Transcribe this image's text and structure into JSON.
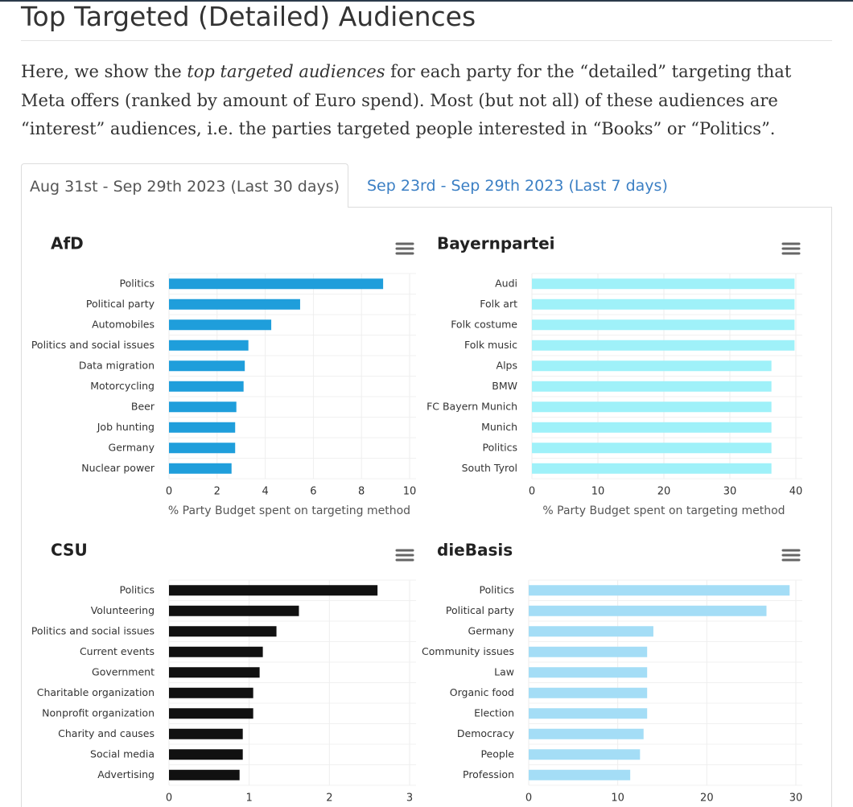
{
  "header": {
    "title": "Top Targeted (Detailed) Audiences"
  },
  "intro": [
    "Here, we show the ",
    "top targeted audiences",
    " for each party for the “detailed” targeting that Meta offers (ranked by amount of Euro spend). Most (but not all) of these audiences are “interest” audiences, i.e. the parties targeted people interested in “Books” or “Politics”."
  ],
  "tabs": [
    "Aug 31st - Sep 29th 2023 (Last 30 days)",
    "Sep 23rd - Sep 29th 2023 (Last 7 days)"
  ],
  "chart_data": [
    {
      "type": "bar",
      "title": "AfD",
      "color": "#1f9edb",
      "categories": [
        "Politics",
        "Political party",
        "Automobiles",
        "Politics and social issues",
        "Data migration",
        "Motorcycling",
        "Beer",
        "Job hunting",
        "Germany",
        "Nuclear power"
      ],
      "values": [
        8.9,
        5.45,
        4.25,
        3.3,
        3.15,
        3.1,
        2.8,
        2.75,
        2.75,
        2.6
      ],
      "xlim": [
        0,
        10
      ],
      "xticks": [
        0,
        2,
        4,
        6,
        8,
        10
      ],
      "xlabel": "% Party Budget spent on targeting method"
    },
    {
      "type": "bar",
      "title": "Bayernpartei",
      "color": "#9ff1f9",
      "categories": [
        "Audi",
        "Folk art",
        "Folk costume",
        "Folk music",
        "Alps",
        "BMW",
        "FC Bayern Munich",
        "Munich",
        "Politics",
        "South Tyrol"
      ],
      "values": [
        39.8,
        39.8,
        39.8,
        39.8,
        36.3,
        36.3,
        36.3,
        36.3,
        36.3,
        36.3
      ],
      "xlim": [
        0,
        40
      ],
      "xticks": [
        0,
        10,
        20,
        30,
        40
      ],
      "xlabel": "% Party Budget spent on targeting method"
    },
    {
      "type": "bar",
      "title": "CSU",
      "color": "#111111",
      "categories": [
        "Politics",
        "Volunteering",
        "Politics and social issues",
        "Current events",
        "Government",
        "Charitable organization",
        "Nonprofit organization",
        "Charity and causes",
        "Social media",
        "Advertising"
      ],
      "values": [
        2.6,
        1.62,
        1.34,
        1.17,
        1.13,
        1.05,
        1.05,
        0.92,
        0.92,
        0.88
      ],
      "xlim": [
        0,
        3
      ],
      "xticks": [
        0,
        1,
        2,
        3
      ]
    },
    {
      "type": "bar",
      "title": "dieBasis",
      "color": "#a4ddf6",
      "categories": [
        "Politics",
        "Political party",
        "Germany",
        "Community issues",
        "Law",
        "Organic food",
        "Election",
        "Democracy",
        "People",
        "Profession"
      ],
      "values": [
        29.3,
        26.7,
        14.0,
        13.3,
        13.3,
        13.3,
        13.3,
        12.9,
        12.5,
        11.4
      ],
      "xlim": [
        0,
        30
      ],
      "xticks": [
        0,
        10,
        20,
        30
      ]
    }
  ]
}
